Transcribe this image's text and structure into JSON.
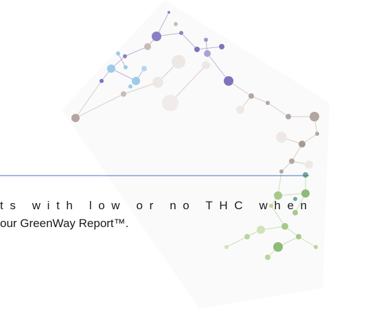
{
  "text": {
    "lines": [
      "ts with low or no THC when",
      "our GreenWay Report™."
    ]
  }
}
